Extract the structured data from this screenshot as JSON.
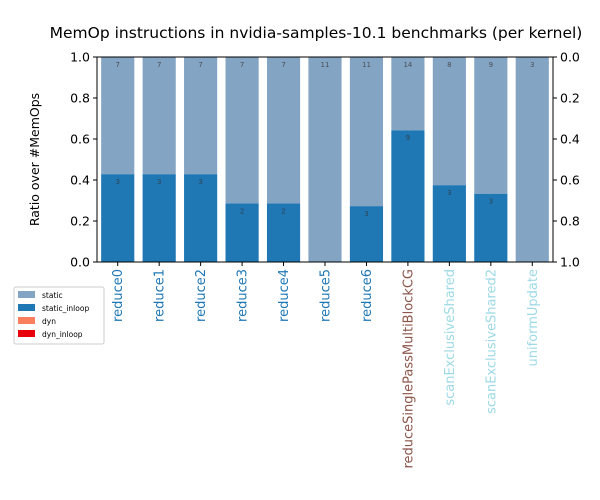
{
  "chart_data": {
    "type": "bar",
    "stacked": true,
    "title": "MemOp instructions in nvidia-samples-10.1 benchmarks (per kernel)",
    "ylabel": "Ratio over #MemOps",
    "ylim": [
      0,
      1.0
    ],
    "y_ticks": [
      "0.0",
      "0.2",
      "0.4",
      "0.6",
      "0.8",
      "1.0"
    ],
    "y2_ticks": [
      "1.0",
      "0.8",
      "0.6",
      "0.4",
      "0.2",
      "0.0"
    ],
    "categories": [
      "reduce0",
      "reduce1",
      "reduce2",
      "reduce3",
      "reduce4",
      "reduce5",
      "reduce6",
      "reduceSinglePassMultiBlockCG",
      "scanExclusiveShared",
      "scanExclusiveShared2",
      "uniformUpdate"
    ],
    "category_colors": [
      "#1f77b4",
      "#1f77b4",
      "#1f77b4",
      "#1f77b4",
      "#1f77b4",
      "#1f77b4",
      "#1f77b4",
      "#8c564b",
      "#9edae5",
      "#9edae5",
      "#9edae5"
    ],
    "series": [
      {
        "name": "static_inloop",
        "color": "#1f77b4",
        "values": [
          0.4286,
          0.4286,
          0.4286,
          0.2857,
          0.2857,
          0.0,
          0.2727,
          0.6429,
          0.375,
          0.3333,
          0.0
        ],
        "labels": [
          "3",
          "3",
          "3",
          "2",
          "2",
          "",
          "3",
          "9",
          "3",
          "3",
          ""
        ]
      },
      {
        "name": "static",
        "color": "#84a4c4",
        "values": [
          0.5714,
          0.5714,
          0.5714,
          0.7143,
          0.7143,
          1.0,
          0.7273,
          0.3571,
          0.625,
          0.6667,
          1.0
        ],
        "labels": [
          "7",
          "7",
          "7",
          "7",
          "7",
          "11",
          "11",
          "14",
          "8",
          "9",
          "3"
        ]
      }
    ],
    "legend": {
      "placement": "left",
      "entries": [
        {
          "label": "static",
          "color": "#84a4c4"
        },
        {
          "label": "static_inloop",
          "color": "#1f77b4"
        },
        {
          "label": "dyn",
          "color": "#f97f5e"
        },
        {
          "label": "dyn_inloop",
          "color": "#e8000b"
        }
      ]
    }
  }
}
